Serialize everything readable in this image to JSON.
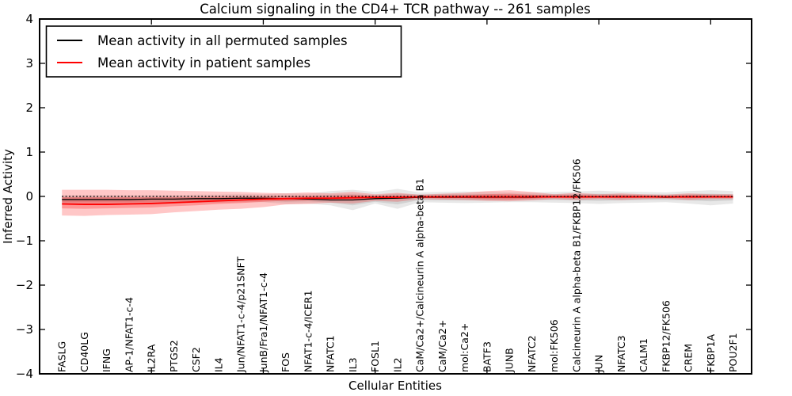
{
  "figure": {
    "title": "Calcium signaling in the CD4+ TCR pathway -- 261 samples",
    "xlabel": "Cellular Entities",
    "ylabel": "Inferred Activity",
    "background_color": "#ffffff",
    "axis_color": "#000000"
  },
  "legend": {
    "items": [
      {
        "label": "Mean activity in all permuted samples",
        "color": "#000000"
      },
      {
        "label": "Mean activity in patient samples",
        "color": "#ff0000"
      }
    ]
  },
  "chart_data": {
    "type": "line",
    "title": "Calcium signaling in the CD4+ TCR pathway -- 261 samples",
    "xlabel": "Cellular Entities",
    "ylabel": "Inferred Activity",
    "ylim": [
      -4,
      4
    ],
    "xlim": [
      0,
      31.83
    ],
    "yticks": [
      -4,
      -3,
      -2,
      -1,
      0,
      1,
      2,
      3,
      4
    ],
    "xticks": [
      5,
      10,
      15,
      20,
      25,
      30
    ],
    "grid": false,
    "legend_position": "upper left",
    "zero_line": {
      "y": 0,
      "style": "dotted",
      "color": "#000000"
    },
    "categories": [
      "FASLG",
      "CD40LG",
      "IFNG",
      "AP-1/NFAT1-c-4",
      "IL2RA",
      "PTGS2",
      "CSF2",
      "IL4",
      "Jun/NFAT1-c-4/p21SNFT",
      "JunB/Fra1/NFAT1-c-4",
      "FOS",
      "NFAT1-c-4/ICER1",
      "NFATC1",
      "IL3",
      "FOSL1",
      "IL2",
      "CaM/Ca2+/Calcineurin A alpha-beta B1",
      "CaM/Ca2+",
      "mol:Ca2+",
      "BATF3",
      "JUNB",
      "NFATC2",
      "mol:FK506",
      "Calcineurin A alpha-beta B1/FKBP12/FK506",
      "JUN",
      "NFATC3",
      "CALM1",
      "FKBP12/FK506",
      "CREM",
      "FKBP1A",
      "POU2F1"
    ],
    "x": [
      1,
      2,
      3,
      4,
      5,
      6,
      7,
      8,
      9,
      10,
      11,
      12,
      13,
      14,
      15,
      16,
      17,
      18,
      19,
      20,
      21,
      22,
      23,
      24,
      25,
      26,
      27,
      28,
      29,
      30,
      31
    ],
    "series": [
      {
        "name": "Mean activity in all permuted samples",
        "color": "#000000",
        "line_width": 1.3,
        "band_color": "#808080",
        "values": [
          -0.07,
          -0.07,
          -0.07,
          -0.07,
          -0.06,
          -0.06,
          -0.05,
          -0.05,
          -0.04,
          -0.04,
          -0.05,
          -0.06,
          -0.08,
          -0.08,
          -0.05,
          -0.04,
          -0.02,
          -0.02,
          -0.02,
          -0.02,
          -0.02,
          -0.02,
          -0.01,
          -0.01,
          -0.01,
          -0.01,
          -0.01,
          -0.02,
          -0.01,
          -0.01,
          -0.01
        ],
        "band_outer_upper": [
          0.03,
          0.03,
          0.03,
          0.03,
          0.03,
          0.03,
          0.04,
          0.04,
          0.05,
          0.05,
          0.07,
          0.06,
          0.12,
          0.15,
          0.1,
          0.17,
          0.09,
          0.1,
          0.11,
          0.1,
          0.09,
          0.09,
          0.1,
          0.11,
          0.13,
          0.11,
          0.1,
          0.09,
          0.12,
          0.14,
          0.12
        ],
        "band_outer_lower": [
          -0.17,
          -0.17,
          -0.17,
          -0.17,
          -0.16,
          -0.15,
          -0.14,
          -0.14,
          -0.13,
          -0.13,
          -0.17,
          -0.16,
          -0.2,
          -0.31,
          -0.16,
          -0.28,
          -0.13,
          -0.14,
          -0.15,
          -0.14,
          -0.13,
          -0.13,
          -0.14,
          -0.15,
          -0.17,
          -0.15,
          -0.14,
          -0.13,
          -0.16,
          -0.2,
          -0.16
        ],
        "band_inner_upper": [
          -0.01,
          -0.01,
          -0.01,
          -0.01,
          -0.01,
          0.0,
          0.0,
          0.0,
          0.01,
          0.01,
          0.02,
          0.01,
          0.04,
          0.05,
          0.03,
          0.06,
          0.04,
          0.05,
          0.05,
          0.05,
          0.04,
          0.04,
          0.05,
          0.05,
          0.06,
          0.05,
          0.04,
          0.04,
          0.05,
          0.06,
          0.05
        ],
        "band_inner_lower": [
          -0.13,
          -0.13,
          -0.13,
          -0.13,
          -0.12,
          -0.12,
          -0.11,
          -0.1,
          -0.1,
          -0.09,
          -0.12,
          -0.11,
          -0.14,
          -0.2,
          -0.12,
          -0.18,
          -0.08,
          -0.09,
          -0.09,
          -0.09,
          -0.08,
          -0.08,
          -0.08,
          -0.09,
          -0.1,
          -0.09,
          -0.08,
          -0.08,
          -0.09,
          -0.11,
          -0.09
        ]
      },
      {
        "name": "Mean activity in patient samples",
        "color": "#ff0000",
        "line_width": 1.8,
        "band_color": "#ff0000",
        "values": [
          -0.17,
          -0.18,
          -0.18,
          -0.17,
          -0.16,
          -0.14,
          -0.12,
          -0.1,
          -0.08,
          -0.06,
          -0.05,
          -0.04,
          -0.04,
          -0.03,
          -0.02,
          -0.02,
          -0.01,
          -0.01,
          -0.01,
          -0.01,
          -0.01,
          -0.01,
          -0.01,
          -0.01,
          -0.01,
          -0.01,
          -0.01,
          -0.01,
          -0.01,
          -0.01,
          -0.01
        ],
        "band_outer_upper": [
          0.15,
          0.15,
          0.15,
          0.14,
          0.14,
          0.13,
          0.12,
          0.11,
          0.1,
          0.08,
          0.07,
          0.09,
          0.07,
          0.1,
          0.05,
          0.08,
          0.04,
          0.06,
          0.08,
          0.12,
          0.14,
          0.1,
          0.05,
          0.08,
          0.05,
          0.07,
          0.05,
          0.04,
          0.07,
          0.05,
          0.05
        ],
        "band_outer_lower": [
          -0.43,
          -0.44,
          -0.42,
          -0.41,
          -0.4,
          -0.36,
          -0.33,
          -0.3,
          -0.28,
          -0.24,
          -0.18,
          -0.17,
          -0.14,
          -0.16,
          -0.1,
          -0.12,
          -0.06,
          -0.07,
          -0.08,
          -0.1,
          -0.11,
          -0.09,
          -0.06,
          -0.08,
          -0.06,
          -0.08,
          -0.06,
          -0.05,
          -0.08,
          -0.06,
          -0.06
        ],
        "band_inner_upper": [
          -0.02,
          -0.02,
          -0.02,
          -0.02,
          -0.02,
          -0.02,
          -0.02,
          -0.01,
          -0.01,
          0.0,
          0.0,
          0.01,
          0.01,
          0.03,
          0.01,
          0.02,
          0.01,
          0.02,
          0.03,
          0.05,
          0.06,
          0.04,
          0.02,
          0.03,
          0.02,
          0.03,
          0.02,
          0.01,
          0.03,
          0.02,
          0.02
        ],
        "band_inner_lower": [
          -0.27,
          -0.28,
          -0.27,
          -0.26,
          -0.25,
          -0.22,
          -0.2,
          -0.17,
          -0.15,
          -0.12,
          -0.1,
          -0.09,
          -0.07,
          -0.08,
          -0.05,
          -0.06,
          -0.03,
          -0.04,
          -0.04,
          -0.06,
          -0.07,
          -0.05,
          -0.03,
          -0.04,
          -0.03,
          -0.04,
          -0.03,
          -0.03,
          -0.04,
          -0.03,
          -0.03
        ]
      }
    ]
  }
}
